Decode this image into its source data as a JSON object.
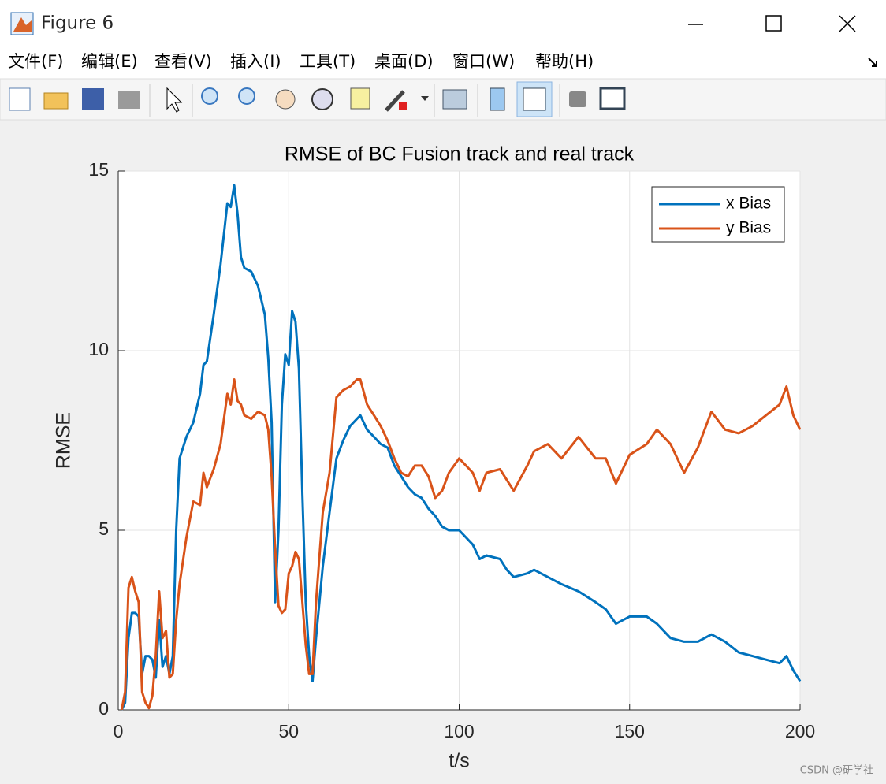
{
  "window": {
    "title": "Figure 6"
  },
  "menu": [
    "文件(F)",
    "编辑(E)",
    "查看(V)",
    "插入(I)",
    "工具(T)",
    "桌面(D)",
    "窗口(W)",
    "帮助(H)"
  ],
  "watermark": "CSDN @研学社",
  "chart_data": {
    "type": "line",
    "title": "RMSE of BC Fusion track and real track",
    "xlabel": "t/s",
    "ylabel": "RMSE",
    "x": [
      1,
      2,
      3,
      4,
      5,
      6,
      7,
      8,
      9,
      10,
      11,
      12,
      13,
      14,
      15,
      16,
      17,
      18,
      20,
      22,
      24,
      25,
      26,
      28,
      30,
      32,
      33,
      34,
      35,
      36,
      37,
      39,
      41,
      43,
      44,
      45,
      46,
      47,
      48,
      49,
      50,
      51,
      52,
      53,
      54,
      55,
      56,
      57,
      58,
      60,
      62,
      64,
      66,
      68,
      70,
      71,
      73,
      75,
      77,
      79,
      81,
      83,
      85,
      87,
      89,
      91,
      93,
      95,
      97,
      100,
      102,
      104,
      106,
      108,
      112,
      114,
      116,
      120,
      122,
      126,
      130,
      135,
      140,
      143,
      146,
      150,
      155,
      158,
      162,
      166,
      170,
      174,
      178,
      182,
      186,
      190,
      194,
      196,
      198,
      200
    ],
    "series": [
      {
        "name": "x Bias",
        "color": "#0072BD",
        "values": [
          0,
          0.2,
          2.0,
          2.7,
          2.7,
          2.6,
          1.0,
          1.5,
          1.5,
          1.4,
          0.9,
          2.5,
          1.2,
          1.5,
          1.0,
          1.5,
          5.0,
          7.0,
          7.6,
          8.0,
          8.8,
          9.6,
          9.7,
          11.0,
          12.4,
          14.1,
          14.0,
          14.6,
          13.8,
          12.6,
          12.3,
          12.2,
          11.8,
          11.0,
          9.8,
          8.0,
          3.0,
          5.0,
          8.5,
          9.9,
          9.6,
          11.1,
          10.8,
          9.5,
          6.0,
          3.0,
          1.5,
          0.8,
          2.0,
          4.0,
          5.5,
          7.0,
          7.5,
          7.9,
          8.1,
          8.2,
          7.8,
          7.6,
          7.4,
          7.3,
          6.8,
          6.5,
          6.2,
          6.0,
          5.9,
          5.6,
          5.4,
          5.1,
          5.0,
          5.0,
          4.8,
          4.6,
          4.2,
          4.3,
          4.2,
          3.9,
          3.7,
          3.8,
          3.9,
          3.7,
          3.5,
          3.3,
          3.0,
          2.8,
          2.4,
          2.6,
          2.6,
          2.4,
          2.0,
          1.9,
          1.9,
          2.1,
          1.9,
          1.6,
          1.5,
          1.4,
          1.3,
          1.5,
          1.1,
          0.8
        ]
      },
      {
        "name": "y Bias",
        "color": "#D95319",
        "values": [
          0,
          0.5,
          3.4,
          3.7,
          3.3,
          3.0,
          0.5,
          0.2,
          0.05,
          0.4,
          1.5,
          3.3,
          2.0,
          2.2,
          0.9,
          1.0,
          2.5,
          3.5,
          4.8,
          5.8,
          5.7,
          6.6,
          6.2,
          6.7,
          7.4,
          8.8,
          8.5,
          9.2,
          8.6,
          8.5,
          8.2,
          8.1,
          8.3,
          8.2,
          7.8,
          6.5,
          4.5,
          2.9,
          2.7,
          2.8,
          3.8,
          4.0,
          4.4,
          4.2,
          3.0,
          1.8,
          1.0,
          1.0,
          3.0,
          5.5,
          6.6,
          8.7,
          8.9,
          9.0,
          9.2,
          9.2,
          8.5,
          8.2,
          7.9,
          7.5,
          7.0,
          6.6,
          6.5,
          6.8,
          6.8,
          6.5,
          5.9,
          6.1,
          6.6,
          7.0,
          6.8,
          6.6,
          6.1,
          6.6,
          6.7,
          6.4,
          6.1,
          6.8,
          7.2,
          7.4,
          7.0,
          7.6,
          7.0,
          7.0,
          6.3,
          7.1,
          7.4,
          7.8,
          7.4,
          6.6,
          7.3,
          8.3,
          7.8,
          7.7,
          7.9,
          8.2,
          8.5,
          9.0,
          8.2,
          7.8
        ]
      }
    ],
    "xlim": [
      0,
      200
    ],
    "xticks": [
      0,
      50,
      100,
      150,
      200
    ],
    "ylim": [
      0,
      15
    ],
    "yticks": [
      0,
      5,
      10,
      15
    ],
    "grid": true,
    "legend": "northeast"
  }
}
